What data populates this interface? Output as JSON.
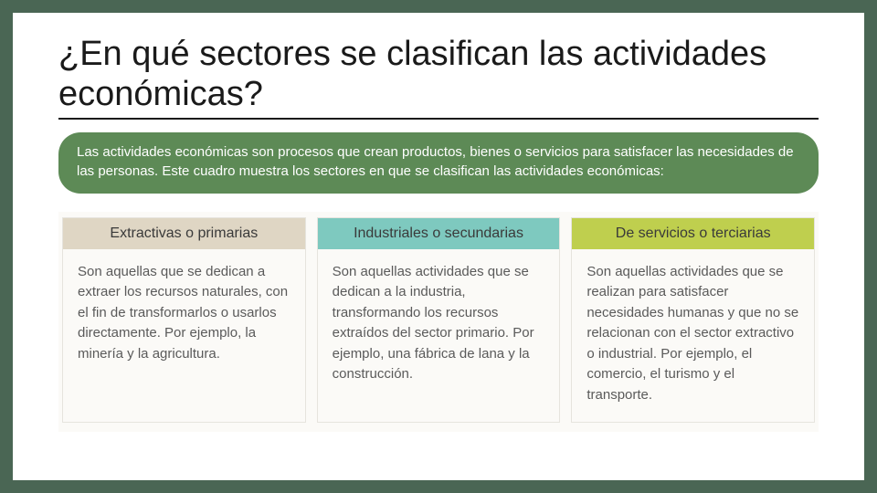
{
  "slide": {
    "background_color": "#4a6654",
    "inner_background": "#ffffff",
    "title": "¿En qué sectores se clasifican las actividades económicas?",
    "title_color": "#1a1a1a",
    "title_fontsize": 38,
    "intro": {
      "text": "Las actividades económicas son procesos que crean productos, bienes o servicios para satisfacer las necesidades de las personas. Este cuadro muestra los sectores en que se clasifican las actividades económicas:",
      "background": "#5d8a56",
      "text_color": "#ffffff",
      "fontsize": 15,
      "border_radius": 24
    },
    "table": {
      "type": "infographic",
      "panel_background": "#fbfaf7",
      "body_text_color": "#5a5a5a",
      "body_fontsize": 15,
      "header_fontsize": 16,
      "header_text_color": "#3a3a3a",
      "columns": [
        {
          "header": "Extractivas o primarias",
          "header_bg": "#dfd6c4",
          "body": "Son aquellas que se dedican a extraer los recursos naturales, con el fin de transformarlos o usarlos directamente. Por ejemplo, la minería y la agricultura."
        },
        {
          "header": "Industriales o secundarias",
          "header_bg": "#7ec9bf",
          "body": "Son aquellas actividades que se dedican a la industria, transformando los recursos extraídos del sector primario. Por ejemplo, una fábrica de lana y la construcción."
        },
        {
          "header": "De servicios o terciarias",
          "header_bg": "#bfcf4e",
          "body": "Son aquellas actividades que se realizan para satisfacer necesidades humanas y que no se relacionan con el sector extractivo o industrial. Por ejemplo, el comercio, el turismo y el transporte."
        }
      ]
    }
  }
}
